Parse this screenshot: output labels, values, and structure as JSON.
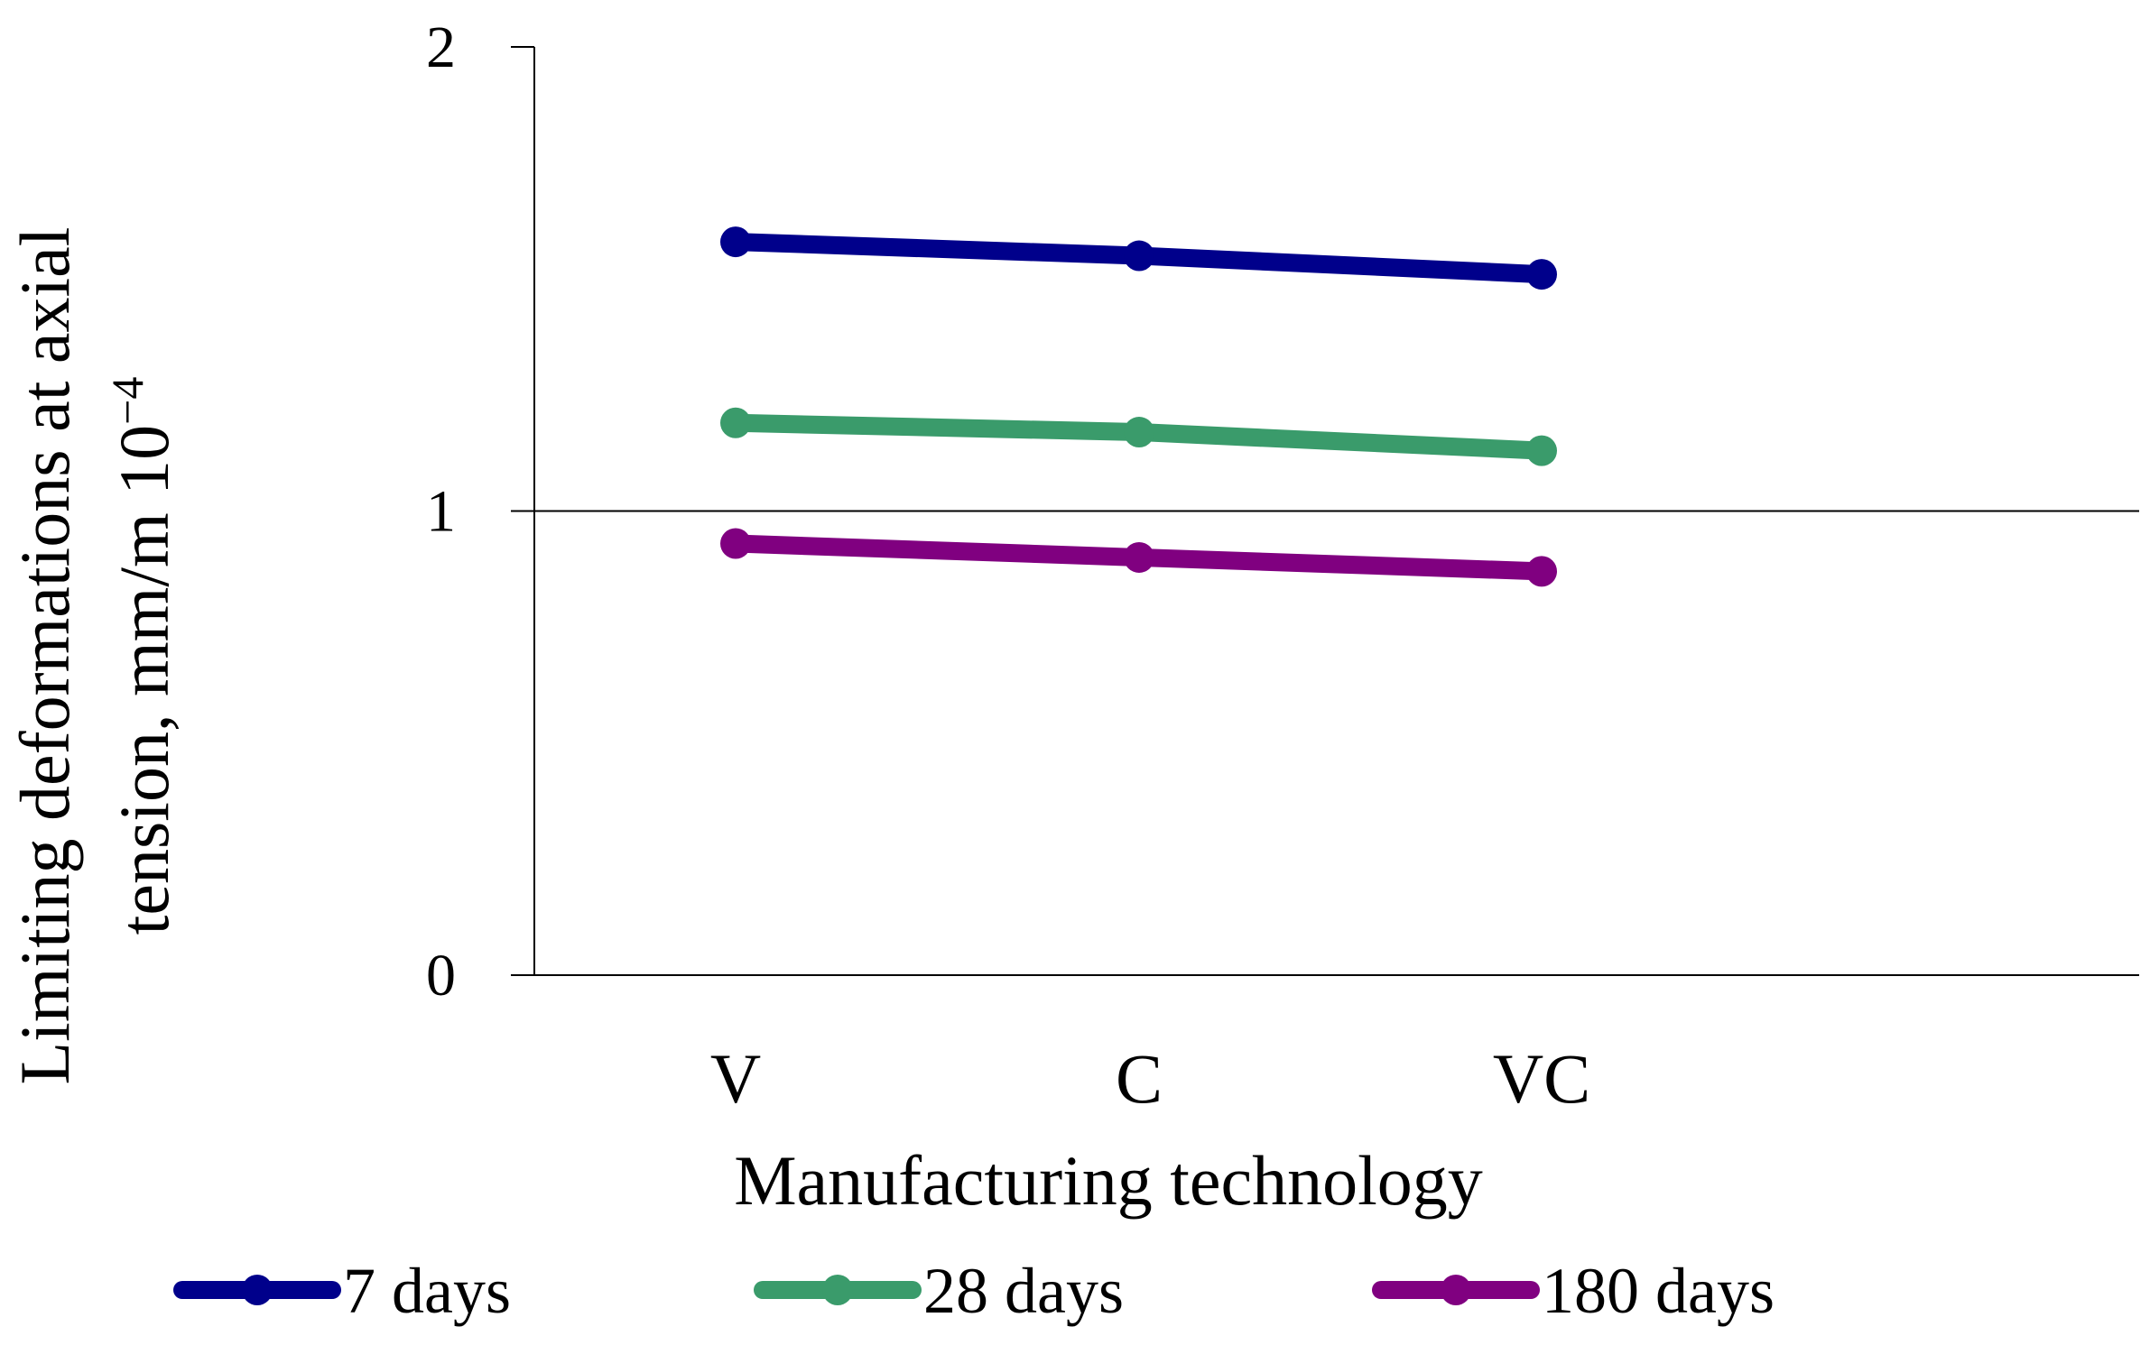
{
  "chart_data": {
    "type": "line",
    "title": "",
    "xlabel": "Manufacturing technology",
    "ylabel_line1": "Limiting deformations at axial",
    "ylabel_line2": "tension, mm/m 10",
    "ylabel_superscript": "−4",
    "ylim": [
      0,
      2
    ],
    "yticks": [
      "0",
      "1",
      "2"
    ],
    "gridlines": [
      1
    ],
    "categories": [
      "V",
      "C",
      "VC"
    ],
    "legend_position": "bottom",
    "series": [
      {
        "name": "7 days",
        "color": "#00008B",
        "values": [
          1.58,
          1.55,
          1.51
        ]
      },
      {
        "name": "28 days",
        "color": "#3A9B6B",
        "values": [
          1.19,
          1.17,
          1.13
        ]
      },
      {
        "name": "180 days",
        "color": "#800080",
        "values": [
          0.93,
          0.9,
          0.87
        ]
      }
    ]
  }
}
